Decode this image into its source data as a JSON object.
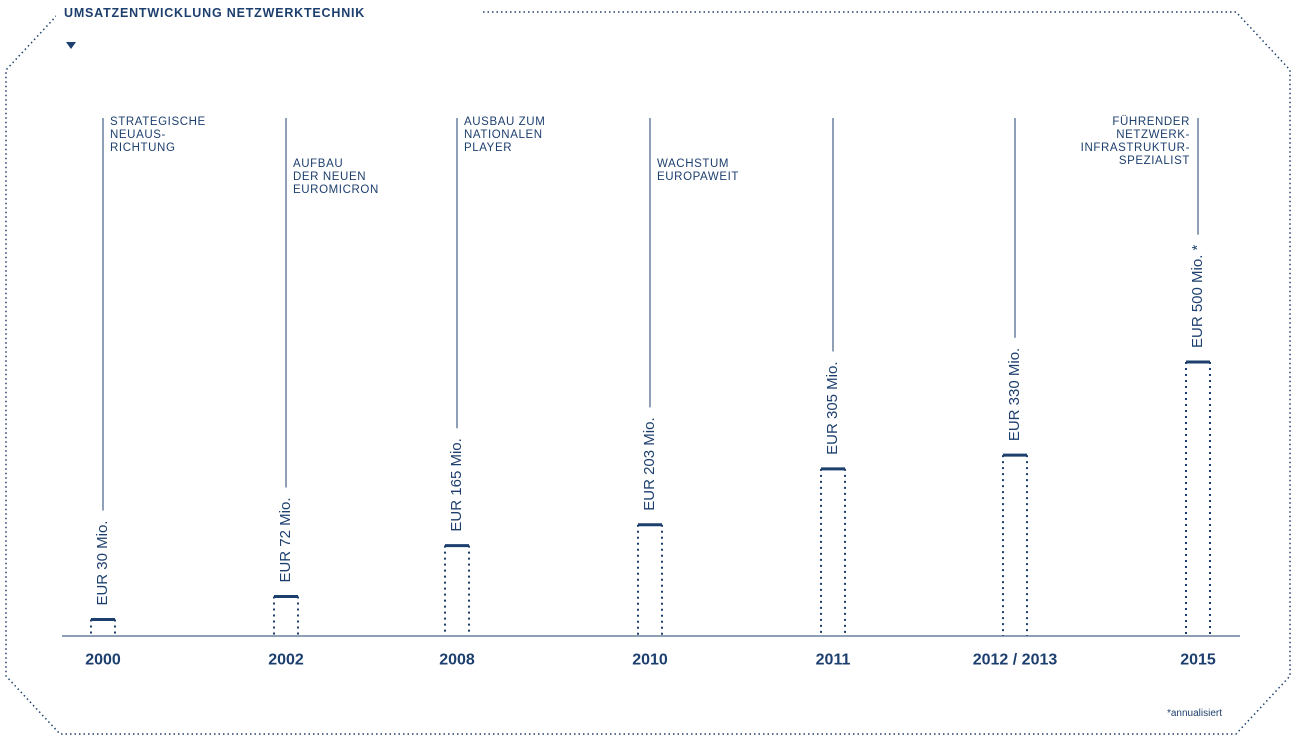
{
  "chart_data": {
    "type": "bar",
    "title": "UMSATZENTWICKLUNG NETZWERKTECHNIK",
    "categories": [
      "2000",
      "2002",
      "2008",
      "2010",
      "2011",
      "2012 / 2013",
      "2015"
    ],
    "values": [
      30,
      72,
      165,
      203,
      305,
      330,
      500
    ],
    "value_labels": [
      "EUR 30 Mio.",
      "EUR 72 Mio.",
      "EUR 165 Mio.",
      "EUR 203 Mio.",
      "EUR 305 Mio.",
      "EUR 330 Mio.",
      "EUR 500 Mio. *"
    ],
    "phases": [
      [
        "STRATEGISCHE",
        "NEUAUS-",
        "RICHTUNG"
      ],
      [
        "AUFBAU",
        "DER NEUEN",
        "EUROMICRON"
      ],
      [
        "AUSBAU ZUM",
        "NATIONALEN",
        "PLAYER"
      ],
      [
        "WACHSTUM",
        "EUROPAWEIT"
      ],
      null,
      null,
      [
        "FÜHRENDER",
        "NETZWERK-",
        "INFRASTRUKTUR-",
        "SPEZIALIST"
      ]
    ],
    "footnote": "*annualisiert",
    "color": "#1d3f6e"
  }
}
